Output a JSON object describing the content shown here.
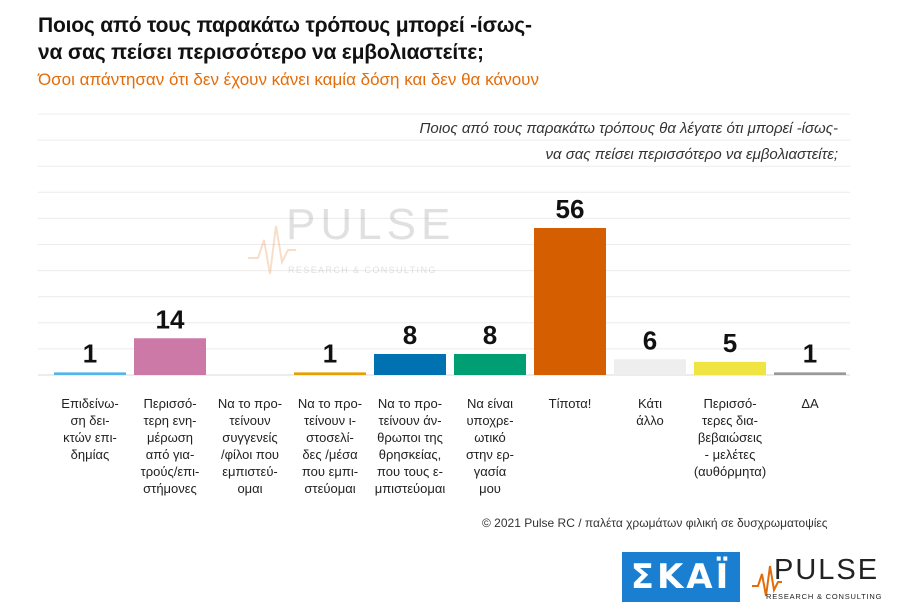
{
  "title": "Ποιος από τους παρακάτω τρόπους μπορεί -ίσως-\nνα σας πείσει περισσότερο να εμβολιαστείτε;",
  "subtitle": "Όσοι απάντησαν ότι δεν έχουν κάνει καμία δόση και δεν θα κάνουν",
  "question": "Ποιος από τους παρακάτω τρόπους θα λέγατε ότι μπορεί -ίσως-\nνα σας πείσει περισσότερο να εμβολιαστείτε;",
  "footer": "© 2021 Pulse RC  /  παλέτα χρωμάτων φιλική σε δυσχρωματοψίες",
  "logos": {
    "skai": "ΣΚΑΪ",
    "pulse": "PULSE",
    "pulse_sub": "RESEARCH & CONSULTING",
    "watermark": "PULSE",
    "watermark_sub": "RESEARCH & CONSULTING"
  },
  "chart_data": {
    "type": "bar",
    "categories": [
      "Επιδείνω-\nση δει-\nκτών επι-\nδημίας",
      "Περισσό-\nτερη ενη-\nμέρωση\nαπό για-\nτρούς/επι-\nστήμονες",
      "Να το προ-\nτείνουν\nσυγγενείς\n/φίλοι που\nεμπιστεύ-\nομαι",
      "Να το προ-\nτείνουν ι-\nστοσελί-\nδες /μέσα\nπου εμπι-\nστεύομαι",
      "Να το προ-\nτείνουν άν-\nθρωποι της\nθρησκείας,\nπου τους ε-\nμπιστεύομαι",
      "Να είναι\nυποχρε-\nωτικό\nστην ερ-\nγασία\nμου",
      "Τίποτα!",
      "Κάτι\nάλλο",
      "Περισσό-\nτερες δια-\nβεβαιώσεις\n- μελέτες\n(αυθόρμητα)",
      "ΔΑ"
    ],
    "values": [
      1,
      14,
      null,
      1,
      8,
      8,
      56,
      6,
      5,
      1
    ],
    "colors": [
      "#56b4e9",
      "#cc79a7",
      "#cccccc",
      "#e69f00",
      "#0072b2",
      "#009e73",
      "#d55e00",
      "#eeeeee",
      "#f0e442",
      "#999999"
    ],
    "ylim": [
      0,
      56
    ],
    "grid": true
  }
}
